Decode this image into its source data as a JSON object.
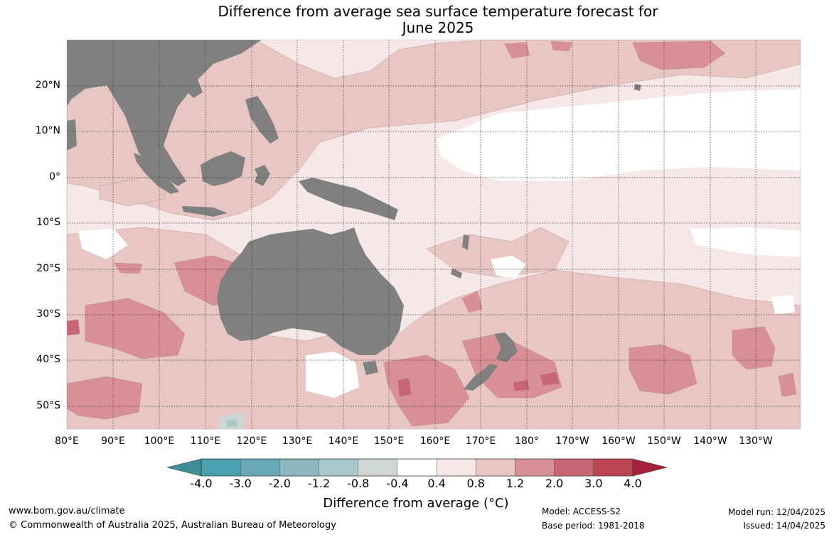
{
  "title": {
    "line1": "Difference from average sea surface temperature forecast for",
    "line2": "June 2025"
  },
  "lat_labels": [
    "20°N",
    "10°N",
    "0°",
    "10°S",
    "20°S",
    "30°S",
    "40°S",
    "50°S"
  ],
  "lon_labels": [
    "80°E",
    "90°E",
    "100°E",
    "110°E",
    "120°E",
    "130°E",
    "140°E",
    "150°E",
    "160°E",
    "170°E",
    "180°",
    "170°W",
    "160°W",
    "150°W",
    "140°W",
    "130°W"
  ],
  "colorbar": {
    "ticks": [
      "-4.0",
      "-3.0",
      "-2.0",
      "-1.2",
      "-0.8",
      "-0.4",
      "0.4",
      "0.8",
      "1.2",
      "2.0",
      "3.0",
      "4.0"
    ],
    "colors": [
      "#4a9fb0",
      "#6aa9b8",
      "#8bb7be",
      "#aac8ca",
      "#cfd6d6",
      "#ffffff",
      "#f5e8e7",
      "#e8c6c3",
      "#d98f96",
      "#c96673",
      "#bb4652"
    ],
    "below_color": "#3d8f95",
    "above_color": "#a71f3a",
    "title": "Difference from average (°C)"
  },
  "colors": {
    "land": "#808080",
    "neutral": "#f5e8e7",
    "warm1": "#e8c6c3",
    "warm2": "#d98f96",
    "warm3": "#c96673",
    "cool": "#cfd6d6",
    "cool2": "#aac8ca",
    "white": "#ffffff"
  },
  "footer": {
    "website": "www.bom.gov.au/climate",
    "copyright": "© Commonwealth of Australia 2025, Australian Bureau of Meteorology",
    "model": "Model: ACCESS-S2",
    "base_period": "Base period: 1981-2018",
    "model_run": "Model run: 12/04/2025",
    "issued": "Issued: 14/04/2025"
  }
}
